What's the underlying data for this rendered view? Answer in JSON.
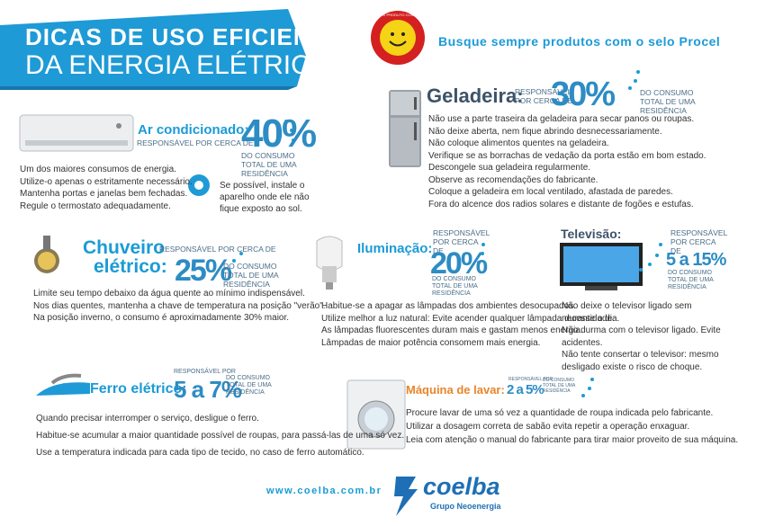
{
  "header": {
    "title_line1": "DICAS DE USO EFICIENTE",
    "title_line2": "DA ENERGIA ELÉTRICA",
    "seal_text": "ESTE PRODUTO CONSOME MENOS ENERGIA",
    "procel_note": "Busque sempre produtos com o selo Procel"
  },
  "sections": {
    "ar_condicionado": {
      "title": "Ar condicionado:",
      "responsible": "RESPONSÁVEL POR CERCA DE",
      "percent": "40%",
      "consumption": "DO CONSUMO TOTAL DE UMA RESIDÊNCIA",
      "tips": [
        "Um dos maiores consumos de energia.",
        "Utilize-o apenas o estritamente necessário.",
        "Mantenha portas e janelas bem fechadas.",
        "Regule o termostato adequadamente."
      ],
      "note": "Se possível, instale o aparelho onde ele não fique exposto ao sol."
    },
    "geladeira": {
      "title": "Geladeira:",
      "responsible": "RESPONSÁVEL POR CERCA DE",
      "percent": "30%",
      "consumption": "DO CONSUMO TOTAL DE UMA RESIDÊNCIA",
      "tips": [
        "Não use a parte traseira da geladeira para secar panos ou roupas.",
        "Não deixe aberta, nem fique abrindo desnecessariamente.",
        "Não coloque alimentos quentes na geladeira.",
        "Verifique se as borrachas de vedação da porta estão em bom estado.",
        "Descongele sua geladeira regularmente.",
        "Observe as recomendações do fabricante.",
        "Coloque a geladeira em local ventilado, afastada de paredes.",
        "Fora do alcence dos radios solares e distante de fogões e estufas."
      ]
    },
    "chuveiro": {
      "title_line1": "Chuveiro",
      "title_line2": "elétrico:",
      "responsible": "RESPONSÁVEL POR CERCA DE",
      "percent": "25%",
      "consumption": "DO CONSUMO TOTAL DE UMA RESIDÊNCIA",
      "tips": [
        "Limite seu tempo debaixo da água quente ao mínimo indispensável.",
        "Nos dias quentes, mantenha a chave de temperatura na posição \"verão\".",
        "Na posição inverno, o consumo é aproximadamente 30% maior."
      ]
    },
    "iluminacao": {
      "title": "Iluminação:",
      "responsible": "RESPONSÁVEL POR CERCA DE",
      "percent": "20%",
      "consumption": "DO CONSUMO TOTAL DE UMA RESIDÊNCIA",
      "tips": [
        "Habitue-se a apagar as lâmpadas dos ambientes desocupados.",
        "Utilize melhor a luz natural: Evite acender qualquer lâmpada durante o dia.",
        "As lâmpadas fluorescentes duram mais e gastam menos energia.",
        "Lâmpadas de maior potência consomem mais energia."
      ]
    },
    "televisao": {
      "title": "Televisão:",
      "responsible": "RESPONSÁVEL POR CERCA DE",
      "percent": "5 a 15%",
      "consumption": "DO CONSUMO TOTAL DE UMA RESIDÊNCIA",
      "tips": [
        "Não deixe o televisor ligado sem necessidade.",
        "Não durma com o televisor ligado. Evite acidentes.",
        "Não tente consertar o televisor: mesmo desligado existe o risco de choque."
      ]
    },
    "ferro": {
      "title": "Ferro elétrico:",
      "responsible": "RESPONSÁVEL POR",
      "percent": "5 a 7%",
      "consumption": "DO CONSUMO TOTAL DE UMA RESIDÊNCIA",
      "tips": [
        "Quando precisar interromper o serviço, desligue o ferro.",
        "Habitue-se acumular a maior quantidade possível de roupas, para passá-las de uma só vez.",
        "Use a temperatura indicada para cada tipo de tecido, no caso de ferro automático."
      ]
    },
    "maquina": {
      "title": "Máquina de lavar:",
      "responsible": "RESPONSÁVEL POR",
      "percent": "2 a 5%",
      "consumption": "DO CONSUMO TOTAL DE UMA RESIDÊNCIA",
      "tips": [
        "Procure lavar de uma só vez a quantidade de roupa indicada pelo fabricante.",
        "Utilizar a dosagem correta de sabão evita repetir a operação enxaguar.",
        "Leia com atenção o manual do fabricante para tirar maior proveito de sua máquina."
      ]
    }
  },
  "footer": {
    "url": "www.coelba.com.br",
    "brand": "coelba",
    "group": "Grupo Neoenergia"
  }
}
